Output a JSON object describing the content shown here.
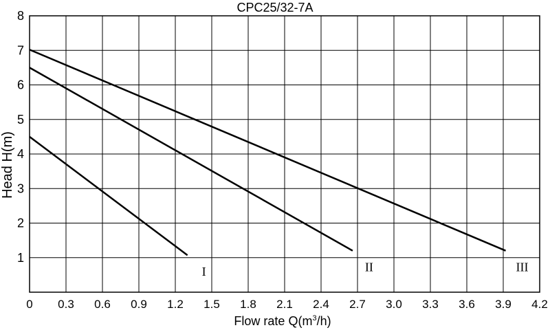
{
  "chart_data": {
    "type": "line",
    "title": "CPC25/32-7A",
    "xlabel_prefix": "Flow rate Q(m",
    "xlabel_sup": "3",
    "xlabel_suffix": "/h)",
    "ylabel": "Head H(m)",
    "xlim": [
      0,
      4.2
    ],
    "ylim": [
      0,
      8
    ],
    "x_ticks": [
      "0",
      "0.3",
      "0.6",
      "0.9",
      "1.2",
      "1.5",
      "1.8",
      "2.1",
      "2.4",
      "2.7",
      "3.0",
      "3.3",
      "3.6",
      "3.9",
      "4.2"
    ],
    "y_ticks": [
      "1",
      "2",
      "3",
      "4",
      "5",
      "6",
      "7",
      "8"
    ],
    "grid": true,
    "line_color": "#000000",
    "series": [
      {
        "name": "I",
        "x": [
          0,
          1.3
        ],
        "y": [
          4.5,
          1.07
        ]
      },
      {
        "name": "II",
        "x": [
          0,
          2.66
        ],
        "y": [
          6.5,
          1.2
        ]
      },
      {
        "name": "III",
        "x": [
          0,
          3.92
        ],
        "y": [
          7.02,
          1.2
        ]
      }
    ]
  }
}
